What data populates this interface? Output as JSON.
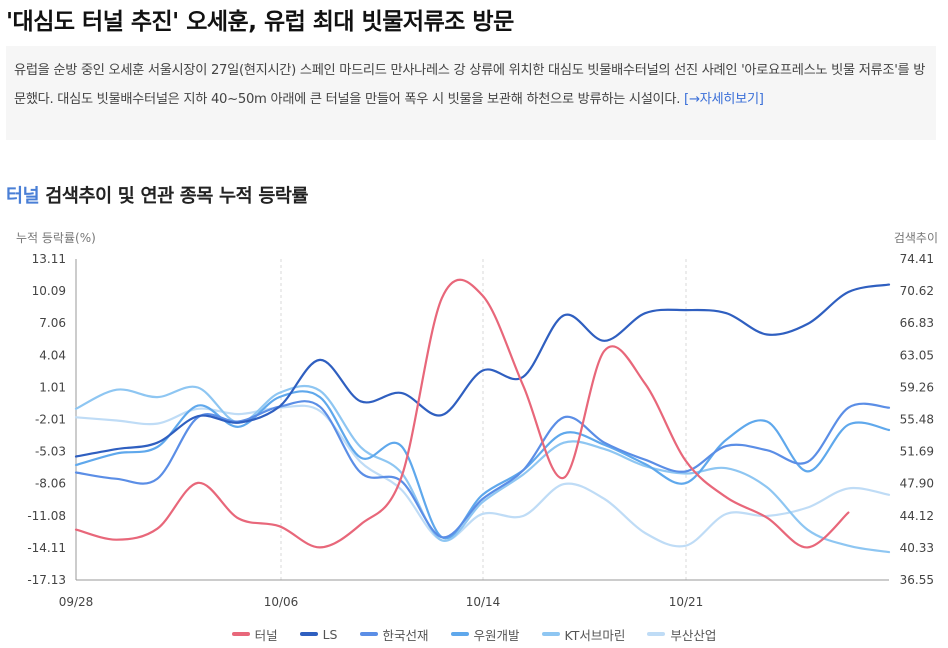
{
  "article": {
    "headline": "'대심도 터널 추진' 오세훈, 유럽 최대 빗물저류조 방문",
    "summary": "유럽을 순방 중인 오세훈 서울시장이 27일(현지시간) 스페인 마드리드 만사나레스 강 상류에 위치한 대심도 빗물배수터널의 선진 사례인 '아로요프레스노 빗물 저류조'를 방문했다. 대심도 빗물배수터널은 지하 40~50m 아래에 큰 터널을 만들어 폭우 시 빗물을 보관해 하천으로 방류하는 시설이다.",
    "more_link": "[→자세히보기]"
  },
  "section": {
    "keyword": "터널",
    "title_rest": " 검색추이 및 연관 종목 누적 등락률"
  },
  "chart_data": {
    "type": "line",
    "ylabel_left": "누적 등락률(%)",
    "ylabel_right": "검색추이",
    "yticks_left": [
      "13.11",
      "10.09",
      "7.06",
      "4.04",
      "1.01",
      "-2.01",
      "-5.03",
      "-8.06",
      "-11.08",
      "-14.11",
      "-17.13"
    ],
    "yticks_right": [
      "74.41",
      "70.62",
      "66.83",
      "63.05",
      "59.26",
      "55.48",
      "51.69",
      "47.90",
      "44.12",
      "40.33",
      "36.55"
    ],
    "ylim_left": [
      -17.13,
      13.11
    ],
    "ylim_right": [
      36.55,
      74.41
    ],
    "xticks": [
      "09/28",
      "10/06",
      "10/14",
      "10/21"
    ],
    "grid": "vertical-dashed",
    "legend_position": "bottom",
    "series": [
      {
        "name": "터널",
        "axis": "right",
        "color": "#e8677a",
        "values": [
          42.5,
          41.3,
          42.6,
          48.0,
          43.8,
          42.9,
          40.4,
          43.1,
          48.6,
          69.8,
          70.1,
          59.5,
          48.6,
          63.6,
          59.7,
          50.6,
          46.3,
          43.9,
          40.4,
          44.5
        ]
      },
      {
        "name": "LS",
        "axis": "left",
        "color": "#2f5fc0",
        "values": [
          -5.5,
          -4.8,
          -4.2,
          -1.7,
          -2.3,
          -0.8,
          3.6,
          -0.3,
          0.5,
          -1.6,
          2.6,
          2.0,
          7.8,
          5.4,
          8.0,
          8.3,
          8.0,
          6.0,
          7.0,
          10.0,
          10.7
        ]
      },
      {
        "name": "한국선재",
        "axis": "left",
        "color": "#5b8ee6",
        "values": [
          -7.0,
          -7.6,
          -7.6,
          -1.8,
          -2.2,
          -0.8,
          -0.8,
          -7.0,
          -7.8,
          -13.1,
          -9.5,
          -6.8,
          -1.8,
          -4.2,
          -5.8,
          -6.9,
          -4.5,
          -4.9,
          -6.0,
          -0.9,
          -0.9
        ]
      },
      {
        "name": "우원개발",
        "axis": "left",
        "color": "#5fa8ec",
        "values": [
          -6.3,
          -5.2,
          -4.6,
          -0.7,
          -2.7,
          0.1,
          0.1,
          -5.6,
          -4.5,
          -13.1,
          -9.1,
          -6.8,
          -3.3,
          -4.4,
          -6.2,
          -8.0,
          -3.9,
          -2.2,
          -6.9,
          -2.5,
          -3.0
        ]
      },
      {
        "name": "KT서브마린",
        "axis": "left",
        "color": "#8ec6f2",
        "values": [
          -1.0,
          0.8,
          0.1,
          1.0,
          -2.3,
          0.5,
          0.7,
          -4.6,
          -7.0,
          -13.4,
          -9.8,
          -7.2,
          -4.2,
          -4.8,
          -6.4,
          -7.1,
          -6.6,
          -8.4,
          -12.4,
          -13.9,
          -14.5
        ]
      },
      {
        "name": "부산산업",
        "axis": "left",
        "color": "#bfdcf6",
        "values": [
          -1.8,
          -2.1,
          -2.4,
          -1.0,
          -1.5,
          -0.9,
          -1.2,
          -6.0,
          -8.6,
          -13.4,
          -10.9,
          -11.1,
          -8.1,
          -9.5,
          -12.7,
          -13.9,
          -10.9,
          -11.1,
          -10.3,
          -8.5,
          -9.1
        ]
      }
    ]
  }
}
